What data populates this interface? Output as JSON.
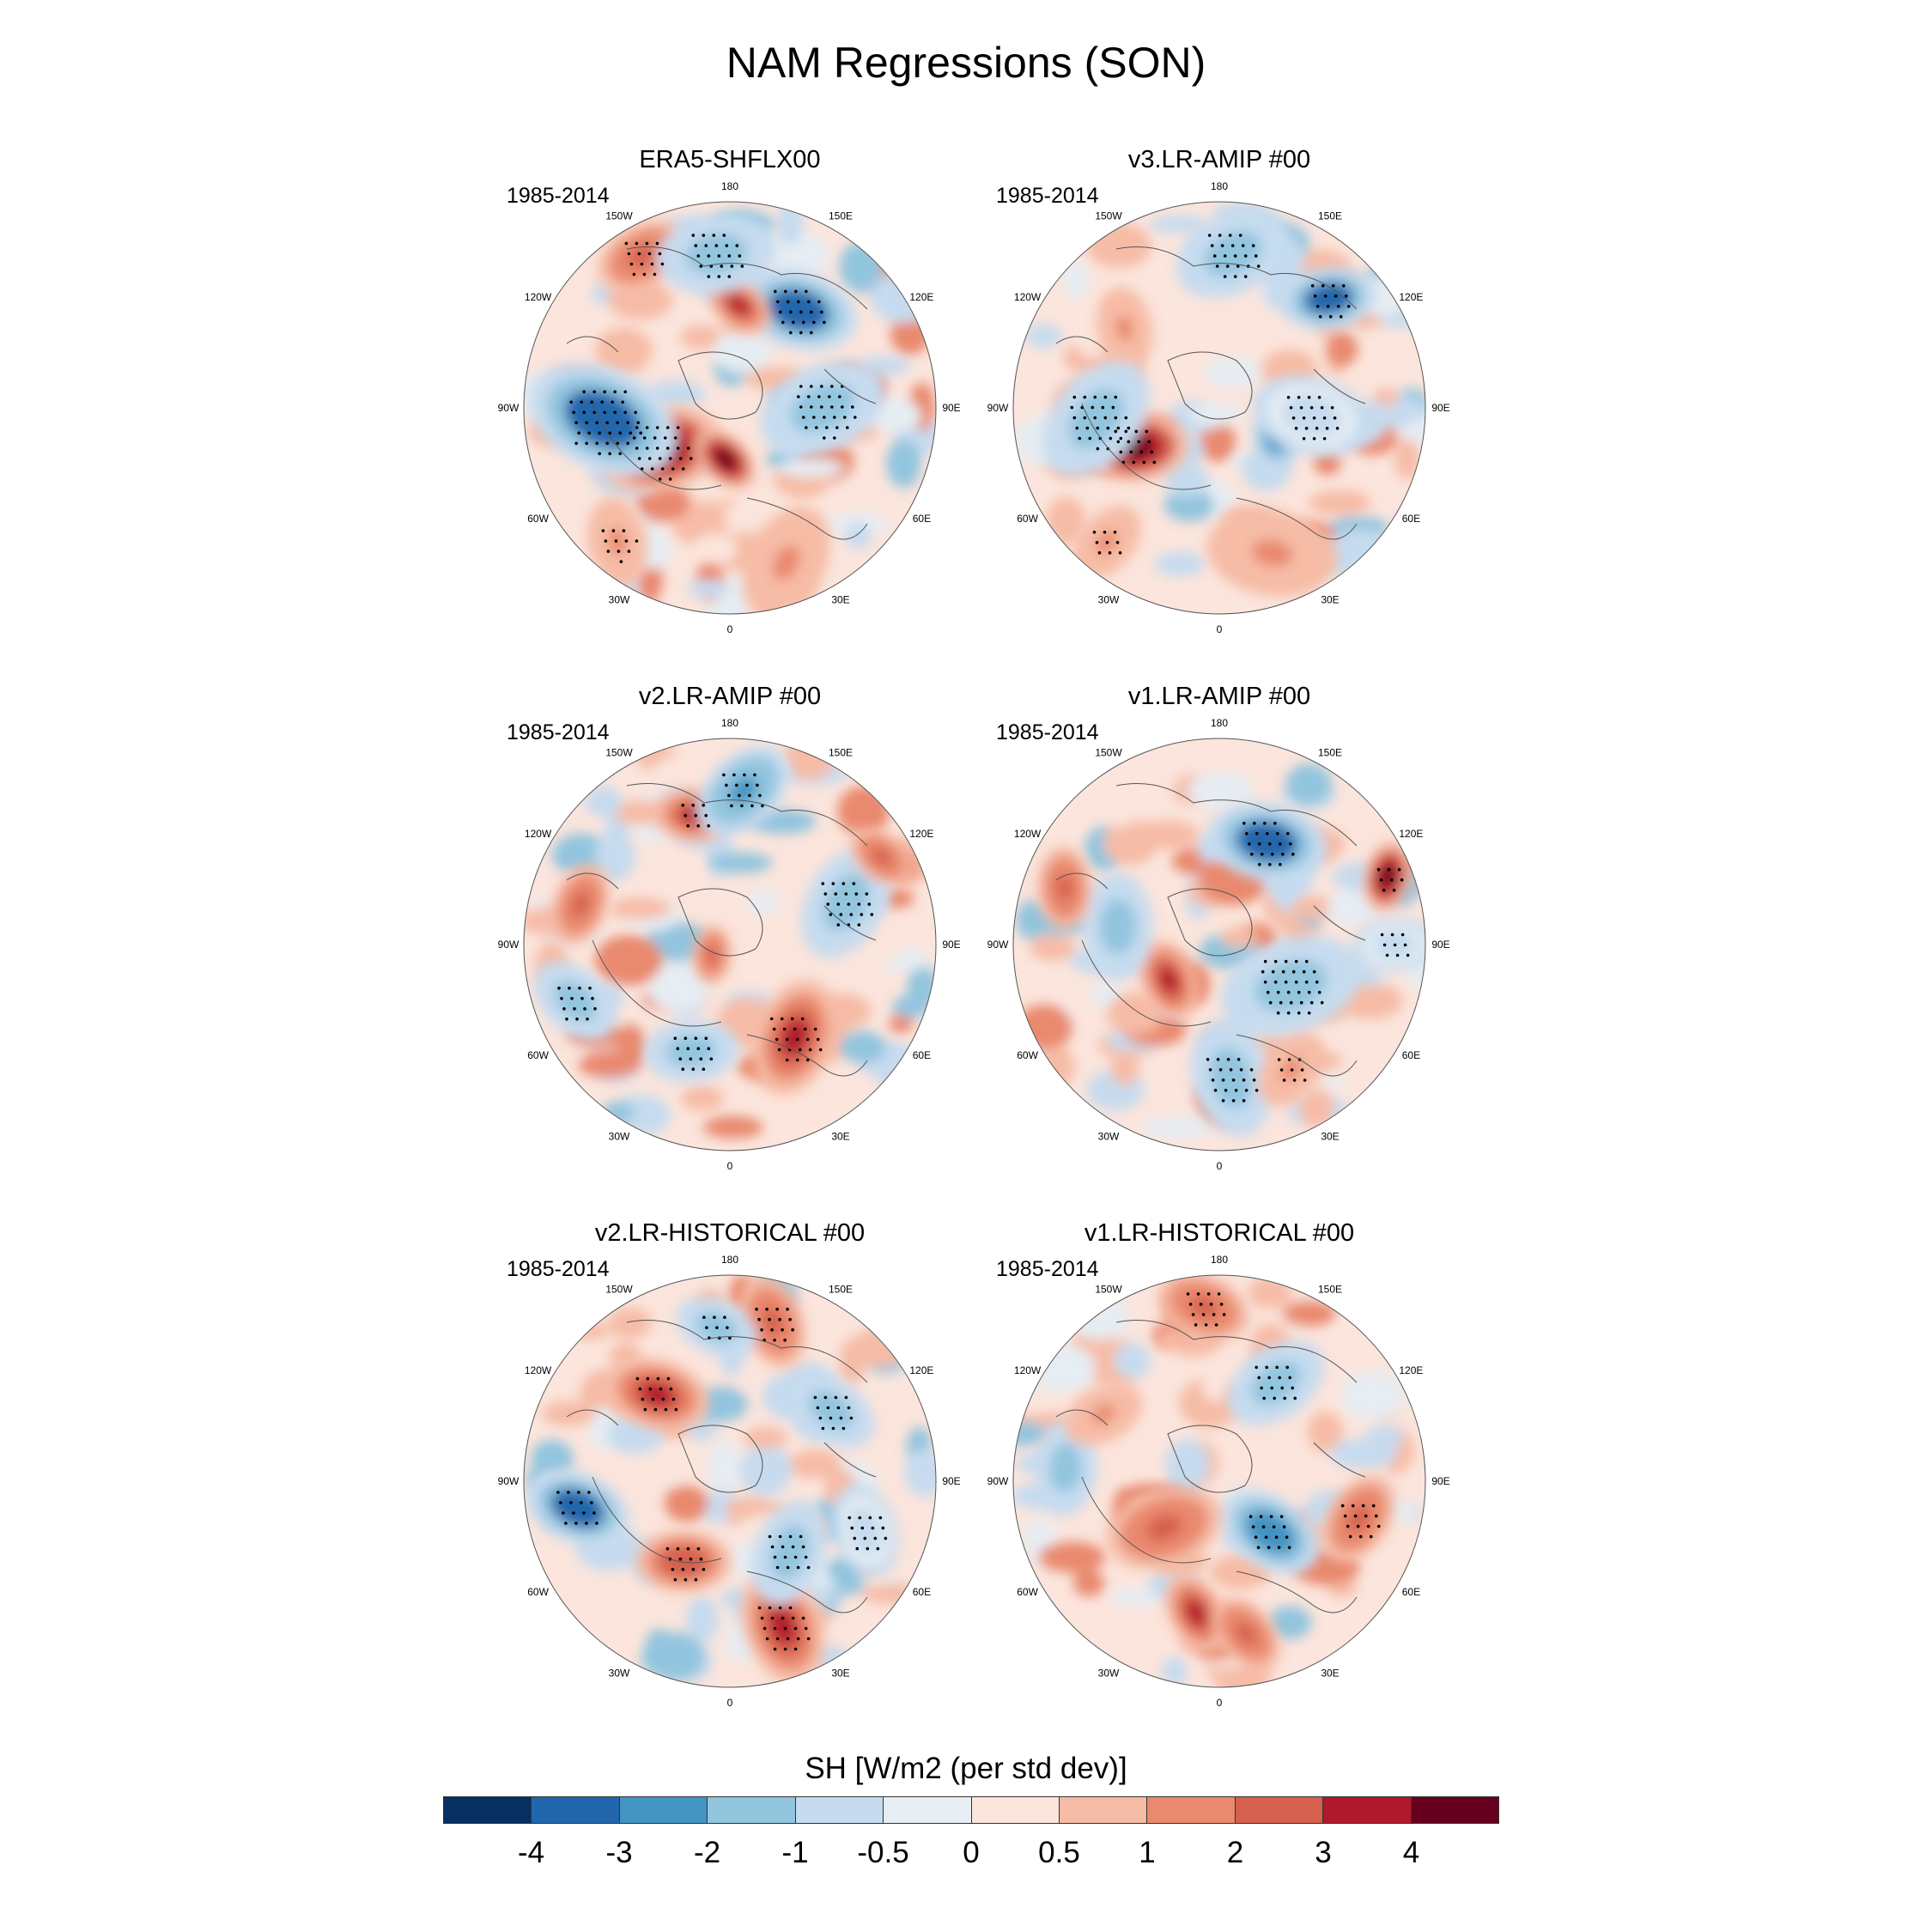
{
  "chart_data": {
    "type": "heatmap",
    "projection": "north-polar-stereographic",
    "title": "NAM Regressions (SON)",
    "colorbar": {
      "title": "SH [W/m2 (per std dev)]",
      "levels": [
        "-4",
        "-3",
        "-2",
        "-1",
        "-0.5",
        "0",
        "0.5",
        "1",
        "2",
        "3",
        "4"
      ],
      "colors": [
        "#053061",
        "#2166ac",
        "#4393c3",
        "#92c5de",
        "#c6dbef",
        "#e6edf3",
        "#fbe5dc",
        "#f6bca6",
        "#e9896e",
        "#d6604d",
        "#b2182b",
        "#67001f"
      ]
    },
    "longitude_labels": [
      "180",
      "150E",
      "120E",
      "90E",
      "60E",
      "30E",
      "0",
      "30W",
      "60W",
      "90W",
      "120W",
      "150W"
    ],
    "panels": [
      {
        "title": "ERA5-SHFLX00",
        "period": "1985-2014",
        "features": [
          {
            "lon": -60,
            "colat": 0.4,
            "value": 4.5,
            "size": 0.22,
            "stipple": true
          },
          {
            "lon": -85,
            "colat": 0.62,
            "value": -4.0,
            "size": 0.26,
            "stipple": true
          },
          {
            "lon": 145,
            "colat": 0.58,
            "value": -4.0,
            "size": 0.2,
            "stipple": true
          },
          {
            "lon": 175,
            "colat": 0.5,
            "value": 3.5,
            "size": 0.12,
            "stipple": false
          },
          {
            "lon": -150,
            "colat": 0.85,
            "value": 2.0,
            "size": 0.16,
            "stipple": true
          },
          {
            "lon": -175,
            "colat": 0.75,
            "value": -2.0,
            "size": 0.2,
            "stipple": true
          },
          {
            "lon": 90,
            "colat": 0.45,
            "value": -1.5,
            "size": 0.22,
            "stipple": true
          },
          {
            "lon": -5,
            "colat": 0.25,
            "value": 4.0,
            "size": 0.12,
            "stipple": false
          },
          {
            "lon": 20,
            "colat": 0.8,
            "value": 1.0,
            "size": 0.2,
            "stipple": false
          },
          {
            "lon": -40,
            "colat": 0.85,
            "value": 1.0,
            "size": 0.15,
            "stipple": true
          }
        ]
      },
      {
        "title": "v3.LR-AMIP  #00",
        "period": "1985-2014",
        "features": [
          {
            "lon": -65,
            "colat": 0.45,
            "value": 4.5,
            "size": 0.18,
            "stipple": true
          },
          {
            "lon": 135,
            "colat": 0.75,
            "value": -4.0,
            "size": 0.16,
            "stipple": true
          },
          {
            "lon": 175,
            "colat": 0.75,
            "value": -2.0,
            "size": 0.2,
            "stipple": true
          },
          {
            "lon": -130,
            "colat": 0.6,
            "value": 1.0,
            "size": 0.14,
            "stipple": false
          },
          {
            "lon": -85,
            "colat": 0.6,
            "value": -2.0,
            "size": 0.22,
            "stipple": true
          },
          {
            "lon": 65,
            "colat": 0.3,
            "value": -3.0,
            "size": 0.12,
            "stipple": false
          },
          {
            "lon": 20,
            "colat": 0.75,
            "value": 1.0,
            "size": 0.22,
            "stipple": false
          },
          {
            "lon": -40,
            "colat": 0.85,
            "value": 1.0,
            "size": 0.14,
            "stipple": true
          },
          {
            "lon": 85,
            "colat": 0.45,
            "value": -1.0,
            "size": 0.2,
            "stipple": true
          }
        ]
      },
      {
        "title": "v2.LR-AMIP  #00",
        "period": "1985-2014",
        "features": [
          {
            "lon": -165,
            "colat": 0.65,
            "value": 3.0,
            "size": 0.14,
            "stipple": true
          },
          {
            "lon": 175,
            "colat": 0.75,
            "value": -2.5,
            "size": 0.18,
            "stipple": true
          },
          {
            "lon": 35,
            "colat": 0.55,
            "value": 3.0,
            "size": 0.2,
            "stipple": true
          },
          {
            "lon": 110,
            "colat": 0.6,
            "value": -2.0,
            "size": 0.2,
            "stipple": true
          },
          {
            "lon": -105,
            "colat": 0.75,
            "value": 2.0,
            "size": 0.14,
            "stipple": false
          },
          {
            "lon": -20,
            "colat": 0.55,
            "value": -2.0,
            "size": 0.16,
            "stipple": true
          },
          {
            "lon": -70,
            "colat": 0.8,
            "value": -1.5,
            "size": 0.16,
            "stipple": true
          },
          {
            "lon": 120,
            "colat": 0.85,
            "value": 2.0,
            "size": 0.12,
            "stipple": false
          },
          {
            "lon": -60,
            "colat": 0.1,
            "value": 2.0,
            "size": 0.1,
            "stipple": false
          }
        ]
      },
      {
        "title": "v1.LR-AMIP  #00",
        "period": "1985-2014",
        "features": [
          {
            "lon": 155,
            "colat": 0.55,
            "value": -4.0,
            "size": 0.2,
            "stipple": true
          },
          {
            "lon": 112,
            "colat": 0.88,
            "value": 4.0,
            "size": 0.12,
            "stipple": true
          },
          {
            "lon": -55,
            "colat": 0.3,
            "value": 3.0,
            "size": 0.14,
            "stipple": false
          },
          {
            "lon": 60,
            "colat": 0.4,
            "value": -2.0,
            "size": 0.24,
            "stipple": true
          },
          {
            "lon": -100,
            "colat": 0.5,
            "value": -1.5,
            "size": 0.18,
            "stipple": false
          },
          {
            "lon": -110,
            "colat": 0.8,
            "value": 2.0,
            "size": 0.14,
            "stipple": false
          },
          {
            "lon": 5,
            "colat": 0.65,
            "value": -1.5,
            "size": 0.2,
            "stipple": true
          },
          {
            "lon": 30,
            "colat": 0.7,
            "value": 1.0,
            "size": 0.14,
            "stipple": true
          },
          {
            "lon": 90,
            "colat": 0.85,
            "value": -1.0,
            "size": 0.14,
            "stipple": true
          }
        ]
      },
      {
        "title": "v2.LR-HISTORICAL  #00",
        "period": "1985-2014",
        "features": [
          {
            "lon": -140,
            "colat": 0.55,
            "value": 3.0,
            "size": 0.18,
            "stipple": true
          },
          {
            "lon": 165,
            "colat": 0.8,
            "value": 2.0,
            "size": 0.16,
            "stipple": true
          },
          {
            "lon": -175,
            "colat": 0.75,
            "value": -2.0,
            "size": 0.14,
            "stipple": true
          },
          {
            "lon": -80,
            "colat": 0.75,
            "value": -4.0,
            "size": 0.18,
            "stipple": true
          },
          {
            "lon": 20,
            "colat": 0.75,
            "value": 3.0,
            "size": 0.2,
            "stipple": true
          },
          {
            "lon": -30,
            "colat": 0.45,
            "value": 2.5,
            "size": 0.16,
            "stipple": true
          },
          {
            "lon": 40,
            "colat": 0.45,
            "value": -2.0,
            "size": 0.18,
            "stipple": true
          },
          {
            "lon": 125,
            "colat": 0.6,
            "value": -2.0,
            "size": 0.16,
            "stipple": true
          },
          {
            "lon": 70,
            "colat": 0.7,
            "value": -1.0,
            "size": 0.16,
            "stipple": true
          }
        ]
      },
      {
        "title": "v1.LR-HISTORICAL  #00",
        "period": "1985-2014",
        "features": [
          {
            "lon": -175,
            "colat": 0.85,
            "value": 2.0,
            "size": 0.16,
            "stipple": true
          },
          {
            "lon": 45,
            "colat": 0.35,
            "value": -3.0,
            "size": 0.18,
            "stipple": true
          },
          {
            "lon": -50,
            "colat": 0.35,
            "value": 2.0,
            "size": 0.2,
            "stipple": false
          },
          {
            "lon": -10,
            "colat": 0.65,
            "value": 3.0,
            "size": 0.14,
            "stipple": false
          },
          {
            "lon": 10,
            "colat": 0.75,
            "value": 2.0,
            "size": 0.14,
            "stipple": false
          },
          {
            "lon": -95,
            "colat": 0.75,
            "value": -2.0,
            "size": 0.16,
            "stipple": false
          },
          {
            "lon": 150,
            "colat": 0.55,
            "value": -1.5,
            "size": 0.18,
            "stipple": true
          },
          {
            "lon": 75,
            "colat": 0.7,
            "value": 2.0,
            "size": 0.16,
            "stipple": true
          },
          {
            "lon": -120,
            "colat": 0.65,
            "value": 1.0,
            "size": 0.14,
            "stipple": false
          }
        ]
      }
    ]
  }
}
